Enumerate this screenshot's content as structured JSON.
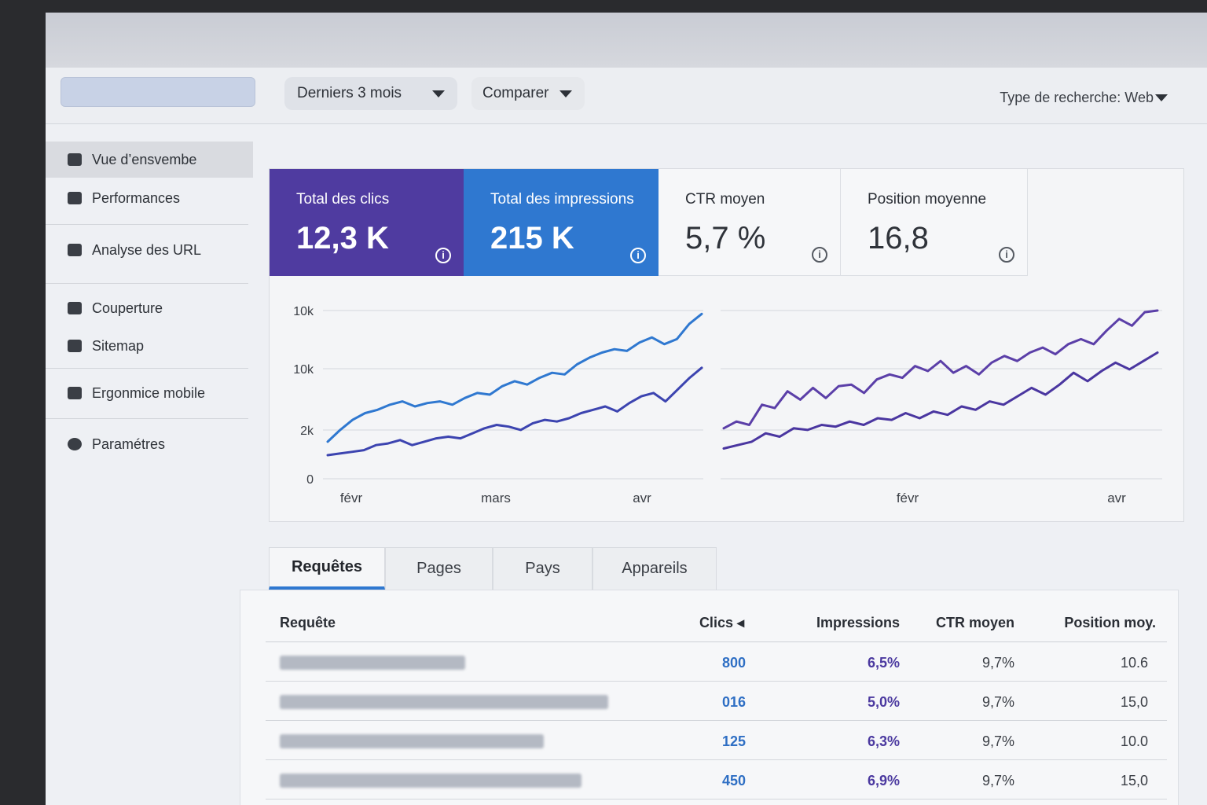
{
  "toolbar": {
    "date_range": "Derniers 3 mois",
    "compare": "Comparer",
    "search_type": "Type de recherche: Web"
  },
  "sidebar": {
    "items": [
      {
        "label": "Vue d’ensvembe",
        "icon": "overview-icon"
      },
      {
        "label": "Performances",
        "icon": "performance-icon"
      },
      {
        "label": "Analyse des URL",
        "icon": "url-inspection-icon"
      },
      {
        "label": "Couperture",
        "icon": "coverage-icon"
      },
      {
        "label": "Sitemap",
        "icon": "sitemap-icon"
      },
      {
        "label": "Ergonmice mobile",
        "icon": "mobile-icon"
      },
      {
        "label": "Paramétres",
        "icon": "gear-icon"
      }
    ]
  },
  "metrics": [
    {
      "label": "Total des clics",
      "value": "12,3 K",
      "color": "#4f3ba0"
    },
    {
      "label": "Total des impressions",
      "value": "215 K",
      "color": "#2f78d0"
    },
    {
      "label": "CTR moyen",
      "value": "5,7 %"
    },
    {
      "label": "Position moyenne",
      "value": "16,8"
    }
  ],
  "chart_data": [
    {
      "type": "line",
      "y_ticks": [
        "10k",
        "10k",
        "2k",
        "0"
      ],
      "x_ticks": [
        "févr",
        "mars",
        "avr"
      ],
      "series": [
        {
          "color": "#2f78d0",
          "values": [
            2.2,
            2.9,
            3.5,
            3.9,
            4.1,
            4.4,
            4.6,
            4.3,
            4.5,
            4.6,
            4.4,
            4.8,
            5.1,
            5.0,
            5.5,
            5.8,
            5.6,
            6.0,
            6.3,
            6.2,
            6.8,
            7.2,
            7.5,
            7.7,
            7.6,
            8.1,
            8.4,
            8.0,
            8.3,
            9.2,
            9.8
          ]
        },
        {
          "color": "#3c44b0",
          "values": [
            1.4,
            1.5,
            1.6,
            1.7,
            2.0,
            2.1,
            2.3,
            2.0,
            2.2,
            2.4,
            2.5,
            2.4,
            2.7,
            3.0,
            3.2,
            3.1,
            2.9,
            3.3,
            3.5,
            3.4,
            3.6,
            3.9,
            4.1,
            4.3,
            4.0,
            4.5,
            4.9,
            5.1,
            4.6,
            5.3,
            6.0,
            6.6
          ]
        }
      ]
    },
    {
      "type": "line",
      "y_ticks": [],
      "x_ticks": [
        "févr",
        "avr"
      ],
      "series": [
        {
          "color": "#5b3fa8",
          "values": [
            3.0,
            3.4,
            3.2,
            4.4,
            4.2,
            5.2,
            4.7,
            5.4,
            4.8,
            5.5,
            5.6,
            5.1,
            5.9,
            6.2,
            6.0,
            6.7,
            6.4,
            7.0,
            6.3,
            6.7,
            6.2,
            6.9,
            7.3,
            7.0,
            7.5,
            7.8,
            7.4,
            8.0,
            8.3,
            8.0,
            8.8,
            9.5,
            9.1,
            9.9,
            10.0
          ]
        },
        {
          "color": "#4a36a0",
          "values": [
            1.8,
            2.0,
            2.2,
            2.7,
            2.5,
            3.0,
            2.9,
            3.2,
            3.1,
            3.4,
            3.2,
            3.6,
            3.5,
            3.9,
            3.6,
            4.0,
            3.8,
            4.3,
            4.1,
            4.6,
            4.4,
            4.9,
            5.4,
            5.0,
            5.6,
            6.3,
            5.8,
            6.4,
            6.9,
            6.5,
            7.0,
            7.5
          ]
        }
      ]
    }
  ],
  "tabs": [
    "Requêtes",
    "Pages",
    "Pays",
    "Appareils"
  ],
  "table": {
    "headers": {
      "query": "Requête",
      "clics": "Clics ◂",
      "impressions": "Impressions",
      "ctr": "CTR moyen",
      "position": "Position moy."
    },
    "rows": [
      {
        "clics": "800",
        "impressions": "6,5%",
        "ctr": "9,7%",
        "position": "10.6"
      },
      {
        "clics": "016",
        "impressions": "5,0%",
        "ctr": "9,7%",
        "position": "15,0"
      },
      {
        "clics": "125",
        "impressions": "6,3%",
        "ctr": "9,7%",
        "position": "10.0"
      },
      {
        "clics": "450",
        "impressions": "6,9%",
        "ctr": "9,7%",
        "position": "15,0"
      }
    ]
  }
}
